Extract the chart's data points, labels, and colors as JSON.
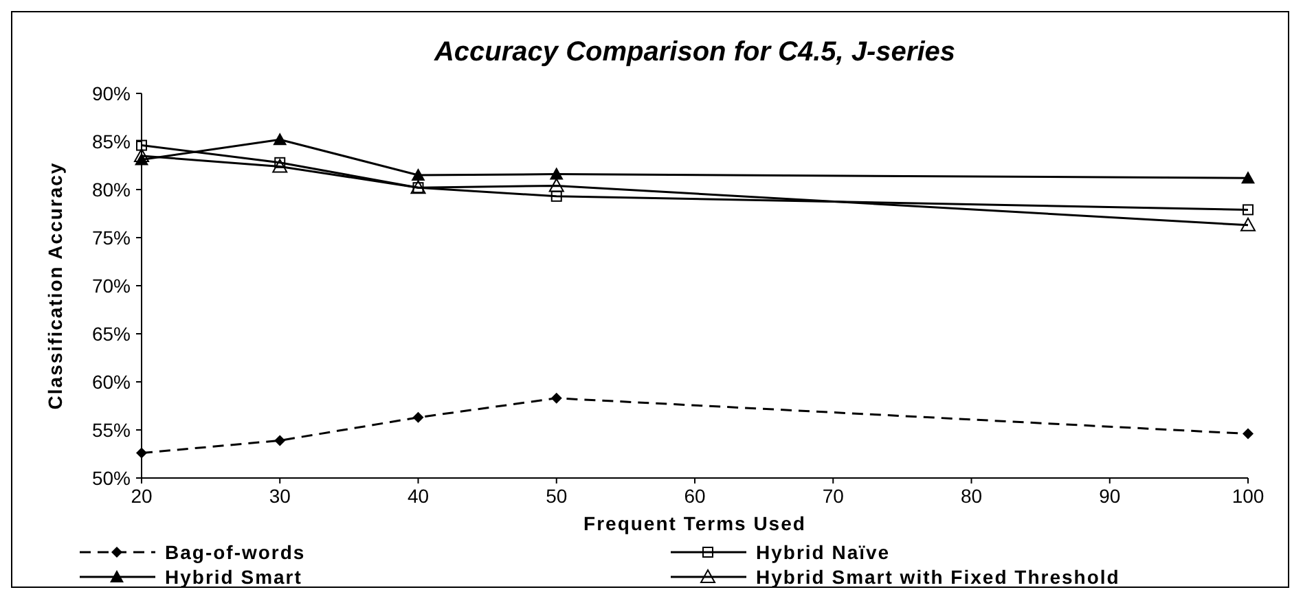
{
  "chart_data": {
    "type": "line",
    "title": "Accuracy Comparison for C4.5, J-series",
    "xlabel": "Frequent Terms Used",
    "ylabel": "Classification Accuracy",
    "x": [
      20,
      30,
      40,
      50,
      100
    ],
    "xlim": [
      20,
      100
    ],
    "xticks": [
      20,
      30,
      40,
      50,
      60,
      70,
      80,
      90,
      100
    ],
    "ylim": [
      50,
      90
    ],
    "yticks": [
      {
        "value": 50,
        "label": "50%"
      },
      {
        "value": 55,
        "label": "55%"
      },
      {
        "value": 60,
        "label": "60%"
      },
      {
        "value": 65,
        "label": "65%"
      },
      {
        "value": 70,
        "label": "70%"
      },
      {
        "value": 75,
        "label": "75%"
      },
      {
        "value": 80,
        "label": "80%"
      },
      {
        "value": 85,
        "label": "85%"
      },
      {
        "value": 90,
        "label": "90%"
      }
    ],
    "legend": "bottom",
    "series": [
      {
        "name": "Bag-of-words",
        "color": "#000000",
        "values": [
          52.6,
          53.9,
          56.3,
          58.3,
          54.6
        ],
        "marker": "diamond",
        "line_style": "dashed"
      },
      {
        "name": "Hybrid Naïve",
        "color": "#000000",
        "values": [
          84.6,
          82.8,
          80.2,
          79.3,
          77.9
        ],
        "marker": "square",
        "line_style": "solid"
      },
      {
        "name": "Hybrid Smart",
        "color": "#000000",
        "values": [
          83.1,
          85.2,
          81.5,
          81.6,
          81.2
        ],
        "marker": "triangle",
        "line_style": "solid"
      },
      {
        "name": "Hybrid Smart with Fixed Threshold",
        "color": "#000000",
        "values": [
          83.5,
          82.4,
          80.2,
          80.4,
          76.3
        ],
        "marker": "triangle-open",
        "line_style": "solid"
      }
    ]
  }
}
